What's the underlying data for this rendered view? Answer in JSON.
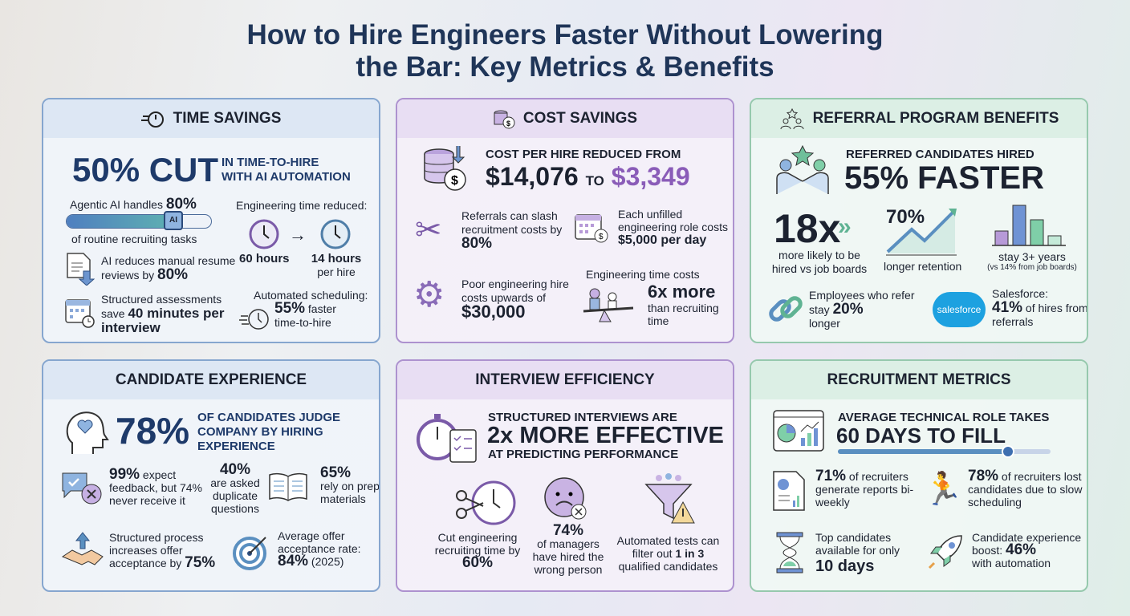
{
  "title": {
    "line1": "How to Hire Engineers Faster Without Lowering",
    "line2": "the Bar: Key Metrics & Benefits"
  },
  "time_savings": {
    "header": "TIME SAVINGS",
    "headline": "50% CUT",
    "headline_sub1": "IN TIME-TO-HIRE",
    "headline_sub2": "WITH AI AUTOMATION",
    "agentic_pre": "Agentic AI handles ",
    "agentic_em": "80%",
    "agentic_post": "of routine recruiting tasks",
    "agentic_progress": 80,
    "chip_label": "AI",
    "resume_pre": "AI reduces manual resume reviews by ",
    "resume_em": "80%",
    "assess_pre": "Structured assessments save ",
    "assess_em": "40 minutes per interview",
    "eng_label": "Engineering time reduced:",
    "from_hours": "60 hours",
    "to_hours": "14 hours",
    "to_sub": "per hire",
    "sched_label": "Automated scheduling:",
    "sched_em": "55%",
    "sched_post1": " faster",
    "sched_post2": "time-to-hire"
  },
  "cost_savings": {
    "header": "COST SAVINGS",
    "headline": "COST PER HIRE REDUCED FROM",
    "from": "$14,076",
    "to_word": "TO",
    "to": "$3,349",
    "referral_pre": "Referrals can slash recruitment costs by",
    "referral_em": "80%",
    "unfilled_pre": "Each unfilled engineering role costs",
    "unfilled_em": "$5,000 per day",
    "poor_pre": "Poor engineering hire costs upwards of",
    "poor_em": "$30,000",
    "eng_label": "Engineering time costs",
    "eng_em": "6x more",
    "eng_post": "than recruiting time",
    "accent": "#8a5cb8"
  },
  "referral": {
    "header": "REFERRAL PROGRAM BENEFITS",
    "headline": "REFERRED CANDIDATES HIRED",
    "headline_em": "55% FASTER",
    "likely_em": "18x",
    "likely_text": "more likely to be hired vs job boards",
    "retention_em": "70%",
    "retention_text": "longer retention",
    "stay_text": "stay 3+ years",
    "stay_sub": "(vs 14% from job boards)",
    "refer_pre": "Employees who refer stay ",
    "refer_em": "20%",
    "refer_post": "longer",
    "sf_logo": "salesforce",
    "sf_label": "Salesforce:",
    "sf_em": "41%",
    "sf_post": " of hires from referrals"
  },
  "candidate": {
    "header": "CANDIDATE EXPERIENCE",
    "headline_em": "78%",
    "headline": "OF CANDIDATES JUDGE COMPANY BY HIRING EXPERIENCE",
    "feedback_em": "99%",
    "feedback_text": " expect feedback, but 74% never receive it",
    "dup_em": "40%",
    "dup_text": "are asked duplicate questions",
    "prep_em": "65%",
    "prep_text": "rely on prep materials",
    "offer_pre": "Structured process increases offer acceptance by ",
    "offer_em": "75%",
    "rate_pre": "Average offer acceptance rate:",
    "rate_em": "84%",
    "rate_post": " (2025)"
  },
  "interview": {
    "header": "INTERVIEW EFFICIENCY",
    "line1": "STRUCTURED INTERVIEWS ARE",
    "line2": "2x MORE EFFECTIVE",
    "line3": "AT PREDICTING PERFORMANCE",
    "cut_pre": "Cut engineering recruiting time by",
    "cut_em": "60%",
    "wrong_em": "74%",
    "wrong_text": "of managers have hired the wrong person",
    "filter_pre": "Automated tests can filter out ",
    "filter_em": "1 in 3",
    "filter_post": " qualified candidates"
  },
  "metrics": {
    "header": "RECRUITMENT METRICS",
    "line1": "AVERAGE TECHNICAL ROLE TAKES",
    "line2": "60 DAYS TO FILL",
    "fill_progress": 80,
    "reports_em": "71%",
    "reports_text": " of recruiters generate reports bi-weekly",
    "lost_em": "78%",
    "lost_text": " of recruiters lost candidates due to slow scheduling",
    "top_pre": "Top candidates available for only",
    "top_em": "10 days",
    "boost_pre": "Candidate experience boost: ",
    "boost_em": "46%",
    "boost_post": "with automation"
  }
}
